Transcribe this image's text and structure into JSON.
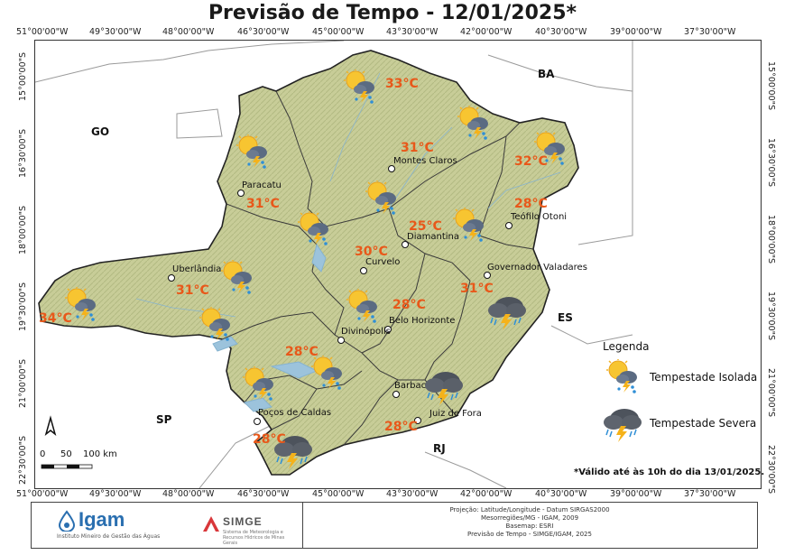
{
  "title": "Previsão de Tempo - 12/01/2025*",
  "coords": {
    "top": [
      "51°00'00\"W",
      "49°30'00\"W",
      "48°00'00\"W",
      "46°30'00\"W",
      "45°00'00\"W",
      "43°30'00\"W",
      "42°00'00\"W",
      "40°30'00\"W",
      "39°00'00\"W",
      "37°30'00\"W"
    ],
    "bottom": [
      "51°00'00\"W",
      "49°30'00\"W",
      "48°00'00\"W",
      "46°30'00\"W",
      "45°00'00\"W",
      "43°30'00\"W",
      "42°00'00\"W",
      "40°30'00\"W",
      "39°00'00\"W",
      "37°30'00\"W"
    ],
    "left": [
      "15°00'00\"S",
      "16°30'00\"S",
      "18°00'00\"S",
      "19°30'00\"S",
      "21°00'00\"S",
      "22°30'00\"S"
    ],
    "right": [
      "15°00'00\"S",
      "16°30'00\"S",
      "18°00'00\"S",
      "19°30'00\"S",
      "21°00'00\"S",
      "22°30'00\"S"
    ]
  },
  "states": [
    "GO",
    "BA",
    "ES",
    "SP",
    "RJ"
  ],
  "cities": [
    "Montes Claros",
    "Paracatu",
    "Teófilo Otoni",
    "Diamantina",
    "Curvelo",
    "Uberlândia",
    "Governador Valadares",
    "Belo Horizonte",
    "Divinópolis",
    "Barbacena",
    "Juiz de Fora",
    "Poços de Caldas"
  ],
  "forecasts": [
    {
      "temp": "33°C",
      "icon": "isolated-storm"
    },
    {
      "temp": "31°C",
      "icon": "isolated-storm"
    },
    {
      "temp": "32°C",
      "icon": "isolated-storm"
    },
    {
      "temp": "31°C",
      "icon": "isolated-storm"
    },
    {
      "temp": "28°C",
      "icon": "isolated-storm"
    },
    {
      "temp": "25°C",
      "icon": "isolated-storm"
    },
    {
      "temp": "30°C",
      "icon": "isolated-storm"
    },
    {
      "temp": "31°C",
      "icon": "isolated-storm"
    },
    {
      "temp": "31°C",
      "icon": "severe-storm"
    },
    {
      "temp": "34°C",
      "icon": "isolated-storm"
    },
    {
      "temp": "28°C",
      "icon": "isolated-storm"
    },
    {
      "temp": "28°C",
      "icon": "isolated-storm"
    },
    {
      "temp": "28°C",
      "icon": "severe-storm"
    },
    {
      "temp": "28°C",
      "icon": "severe-storm"
    }
  ],
  "legend": {
    "title": "Legenda",
    "items": [
      {
        "label": "Tempestade Isolada",
        "icon": "isolated-storm-icon"
      },
      {
        "label": "Tempestade Severa",
        "icon": "severe-storm-icon"
      }
    ]
  },
  "scale": {
    "labels": [
      "0",
      "50",
      "100 km"
    ]
  },
  "validity": "*Válido até às 10h do dia 13/01/2025.",
  "footer": {
    "igam": "Igam",
    "igam_sub": "Instituto Mineiro de Gestão das Águas",
    "simge": "SIMGE",
    "simge_sub": "Sistema de Meteorologia e Recursos Hídricos de Minas Gerais",
    "credits": [
      "Projeção: Latitude/Longitude - Datum SIRGAS2000",
      "Mesorregiões/MG - IGAM, 2009",
      "Basemap: ESRI",
      "Previsão de Tempo - SIMGE/IGAM, 2025"
    ]
  },
  "colors": {
    "temperature": "#e8581a",
    "terrain": "#c9cf9a",
    "water": "#9cc3dc"
  }
}
